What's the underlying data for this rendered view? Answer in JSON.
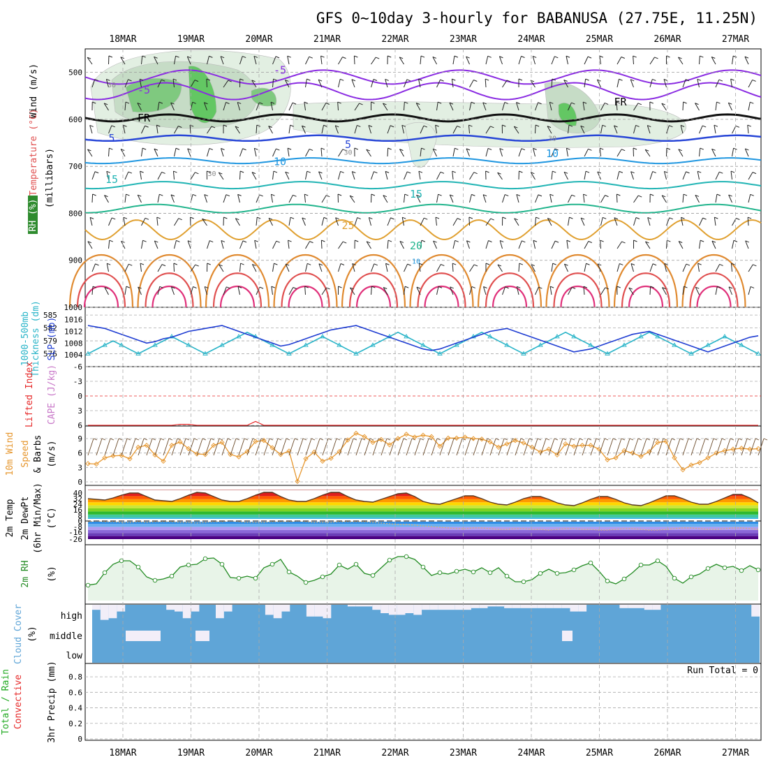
{
  "title": "GFS 0~10day 3-hourly for BABANUSA (27.75E, 11.25N)",
  "date_labels": [
    "18MAR",
    "19MAR",
    "20MAR",
    "21MAR",
    "22MAR",
    "23MAR",
    "24MAR",
    "25MAR",
    "26MAR",
    "27MAR"
  ],
  "colors": {
    "rh_green": "#2e8b2e",
    "temp_purple": "#8a2be2",
    "freeze": "#000000",
    "thickness": "#28b4c8",
    "slp": "#1e3cd2",
    "wind_speed": "#e6962d",
    "lifted_index": "#e62828",
    "cape": "#c878c8",
    "rh2m": "#228b22",
    "cloud": "#5fa5d7",
    "precip_total": "#22aa22",
    "precip_conv": "#e62828"
  },
  "chart_data": [
    {
      "panel": "upper_air",
      "type": "heatmap",
      "ylabel_parts": [
        "Wind (m/s)",
        "Temperature (°C)",
        "RH (%)",
        "(millibars)"
      ],
      "yticks": [
        "500",
        "600",
        "700",
        "800",
        "900",
        "1000"
      ],
      "ylim": [
        1000,
        450
      ],
      "contour_labels": [
        {
          "text": "-5",
          "x": "20MAR",
          "p": 495
        },
        {
          "text": "-5",
          "x": "18MAR",
          "p": 538
        },
        {
          "text": "FR",
          "x": "18MAR",
          "p": 597
        },
        {
          "text": "FR",
          "x": "25MAR",
          "p": 563
        },
        {
          "text": "5",
          "x": "17MAR",
          "p": 640
        },
        {
          "text": "5",
          "x": "21MAR",
          "p": 654
        },
        {
          "text": "10",
          "x": "20MAR",
          "p": 690
        },
        {
          "text": "10",
          "x": "24MAR",
          "p": 673
        },
        {
          "text": "15",
          "x": "17MAR",
          "p": 728
        },
        {
          "text": "15",
          "x": "22MAR",
          "p": 759
        },
        {
          "text": "25",
          "x": "21MAR",
          "p": 826
        },
        {
          "text": "20",
          "x": "22MAR",
          "p": 869
        },
        {
          "text": "30",
          "x": "17MAR",
          "p": 524
        },
        {
          "text": "30",
          "x": "21MAR",
          "p": 668
        },
        {
          "text": "30",
          "x": "19MAR",
          "p": 713
        },
        {
          "text": "30",
          "x": "24MAR",
          "p": 638
        },
        {
          "text": "10",
          "x": "22MAR",
          "p": 900
        }
      ]
    },
    {
      "panel": "thickness_slp",
      "type": "line",
      "ylabel_parts": [
        "1000-500mb",
        "Thickness (dm)",
        "SLP (mb)"
      ],
      "left_ticks": [
        "585",
        "582",
        "579",
        "576"
      ],
      "right_ticks": [
        "1016",
        "1012",
        "1008",
        "1004"
      ],
      "series": [
        {
          "name": "Thickness (dm)",
          "axis": "left",
          "values": [
            576,
            577,
            578,
            579,
            578,
            577,
            576,
            577,
            578,
            579,
            580,
            579,
            578,
            577,
            576,
            577,
            578,
            579,
            580,
            581,
            580,
            579,
            578,
            577,
            576,
            577,
            578,
            579,
            580,
            579,
            578,
            577,
            576,
            577,
            578,
            579,
            580,
            581,
            580,
            579,
            578,
            577,
            576,
            577,
            578,
            579,
            580,
            581,
            580,
            579,
            578,
            577,
            576,
            577,
            578,
            579,
            580,
            581,
            580,
            579,
            578,
            577,
            576,
            577,
            578,
            579,
            580,
            581,
            580,
            579,
            578,
            577,
            576,
            577,
            578,
            579,
            580,
            579,
            578,
            577,
            576
          ]
        },
        {
          "name": "SLP (mb)",
          "axis": "right",
          "values": [
            1014,
            1013.5,
            1013,
            1012,
            1011,
            1010,
            1009,
            1008,
            1008.5,
            1009.5,
            1010,
            1011,
            1012,
            1012.5,
            1013,
            1013.5,
            1014,
            1013,
            1012,
            1011,
            1010,
            1009,
            1008,
            1007,
            1007.5,
            1008.5,
            1009.5,
            1010.5,
            1011.5,
            1012.5,
            1013,
            1013.5,
            1014,
            1013,
            1012,
            1011,
            1010,
            1009,
            1008,
            1007,
            1006,
            1005.5,
            1006,
            1007,
            1008,
            1009,
            1010,
            1011,
            1012,
            1012.5,
            1013,
            1012,
            1011,
            1010,
            1009,
            1008,
            1007,
            1006,
            1005,
            1005.5,
            1006,
            1007,
            1008,
            1009,
            1010,
            1011,
            1011.5,
            1012,
            1011,
            1010,
            1009,
            1008,
            1007,
            1006,
            1005,
            1006,
            1007,
            1008,
            1009,
            1010,
            1010.5
          ]
        }
      ]
    },
    {
      "panel": "lifted_index_cape",
      "type": "line",
      "ylabel_parts": [
        "Lifted Index",
        "CAPE (J/kg)"
      ],
      "yticks": [
        "-6",
        "-3",
        "0",
        "3",
        "6"
      ],
      "ylim": [
        6,
        -6
      ],
      "series": [
        {
          "name": "Lifted Index",
          "values": [
            6,
            6,
            6,
            6,
            6,
            6,
            6,
            6,
            6,
            6,
            6,
            5.8,
            5.8,
            6,
            6,
            6,
            6,
            6,
            6,
            6,
            5.2,
            6,
            6,
            6,
            6,
            6,
            6,
            6,
            6,
            6,
            6,
            6,
            6,
            6,
            6,
            6,
            6,
            6,
            6,
            6,
            6,
            6,
            6,
            6,
            6,
            6,
            6,
            6,
            6,
            6,
            6,
            6,
            6,
            6,
            6,
            6,
            6,
            6,
            6,
            6,
            6,
            6,
            6,
            6,
            6,
            6,
            6,
            6,
            6,
            6,
            6,
            6,
            6,
            6,
            6,
            6,
            6,
            6,
            6,
            6,
            6
          ]
        }
      ]
    },
    {
      "panel": "wind10m",
      "type": "line",
      "ylabel_parts": [
        "10m Wind",
        "Speed",
        "& Barbs",
        "(m/s)"
      ],
      "yticks": [
        "9",
        "6",
        "3",
        "0"
      ],
      "ylim": [
        0,
        11
      ],
      "series": [
        {
          "name": "Speed",
          "values": [
            3.8,
            3.7,
            5,
            5.4,
            5.5,
            4.8,
            7.2,
            7.6,
            5.6,
            4.3,
            7.6,
            8.3,
            6.9,
            5.8,
            5.7,
            7.6,
            8.2,
            5.7,
            5.2,
            6.3,
            8.4,
            8.6,
            7.1,
            5.7,
            6.4,
            0.1,
            4.8,
            6.2,
            4.3,
            4.9,
            6.3,
            8.7,
            10.1,
            9.4,
            8.2,
            8.8,
            7.7,
            9,
            9.9,
            9.3,
            9.7,
            9.4,
            7.4,
            9.1,
            9.1,
            9.3,
            9,
            8.9,
            8.3,
            7.2,
            7.9,
            8.6,
            8.1,
            7.2,
            6.2,
            6.8,
            5.6,
            7.9,
            7.4,
            7.6,
            7.6,
            6.8,
            4.6,
            5,
            6.5,
            6,
            5.3,
            6.3,
            8.2,
            8.4,
            5,
            2.5,
            3.5,
            4,
            5,
            6,
            6.5,
            6.8,
            7,
            6.8,
            6.9
          ]
        }
      ]
    },
    {
      "panel": "temp2m",
      "type": "area",
      "ylabel_parts": [
        "2m Temp",
        "2m DewPt",
        "(6hr Min/Max)",
        "(°C)"
      ],
      "yticks": [
        "40",
        "32",
        "24",
        "16",
        "8",
        "0",
        "-8",
        "-16",
        "-26"
      ],
      "ylim": [
        -26,
        44
      ],
      "series": [
        {
          "name": "2m Temp",
          "values": [
            32,
            31,
            30,
            33,
            37,
            40,
            40,
            35,
            30,
            29,
            28,
            32,
            37,
            41,
            40,
            35,
            30,
            28,
            28,
            32,
            37,
            41,
            41,
            35,
            30,
            28,
            28,
            32,
            37,
            41,
            41,
            35,
            30,
            28,
            27,
            31,
            35,
            39,
            40,
            35,
            28,
            25,
            24,
            28,
            32,
            36,
            36,
            32,
            27,
            24,
            23,
            27,
            32,
            35,
            35,
            31,
            26,
            23,
            22,
            26,
            31,
            35,
            35,
            31,
            26,
            23,
            22,
            26,
            31,
            36,
            36,
            32,
            27,
            24,
            24,
            28,
            33,
            38,
            38,
            33,
            26
          ]
        },
        {
          "name": "2m DewPt",
          "values": [
            -1,
            0,
            -1,
            -1,
            -2,
            -2,
            -1,
            -2,
            -1,
            -1,
            -1,
            -2,
            -2,
            -3,
            -2,
            -1,
            -1,
            0,
            -1,
            -2,
            -2,
            -2,
            -1,
            -1,
            -1,
            0,
            -1,
            -2,
            -2,
            -2,
            -1,
            -1,
            -1,
            -1,
            -2,
            -3,
            -4,
            -5,
            -5,
            -6,
            -7,
            -8,
            -9,
            -10,
            -11,
            -11,
            -10,
            -10,
            -11,
            -12,
            -12,
            -11,
            -11,
            -12,
            -12,
            -13,
            -12,
            -11,
            -11,
            -12,
            -12,
            -13,
            -13,
            -12,
            -11,
            -11,
            -12,
            -13,
            -13,
            -12,
            -11,
            -10,
            -10,
            -11,
            -12,
            -12,
            -11,
            -10,
            -10,
            -11,
            -12
          ]
        }
      ]
    },
    {
      "panel": "rh2m",
      "type": "area",
      "ylabel_parts": [
        "2m RH",
        "(%)"
      ],
      "ylim": [
        0,
        100
      ],
      "series": [
        {
          "name": "2m RH",
          "values": [
            22,
            24,
            40,
            52,
            57,
            57,
            48,
            34,
            29,
            31,
            35,
            48,
            51,
            52,
            60,
            61,
            52,
            33,
            32,
            35,
            32,
            47,
            52,
            59,
            41,
            35,
            26,
            29,
            34,
            38,
            51,
            45,
            52,
            39,
            36,
            47,
            58,
            63,
            63,
            59,
            48,
            36,
            40,
            38,
            42,
            45,
            41,
            47,
            40,
            47,
            35,
            27,
            27,
            30,
            39,
            45,
            39,
            40,
            44,
            50,
            54,
            42,
            28,
            24,
            31,
            40,
            51,
            51,
            57,
            49,
            32,
            25,
            34,
            38,
            46,
            52,
            47,
            49,
            43,
            50,
            44
          ]
        }
      ]
    },
    {
      "panel": "cloud",
      "type": "heatmap",
      "ylabel_parts": [
        "Cloud Cover",
        "(%)"
      ],
      "levels": [
        "high",
        "middle",
        "low"
      ],
      "series": [
        {
          "name": "high",
          "values": [
            30,
            90,
            80,
            40,
            0,
            0,
            0,
            0,
            0,
            30,
            40,
            80,
            40,
            0,
            0,
            80,
            40,
            0,
            0,
            0,
            0,
            60,
            80,
            40,
            0,
            0,
            70,
            70,
            80,
            0,
            0,
            10,
            10,
            10,
            30,
            50,
            60,
            60,
            50,
            60,
            30,
            30,
            30,
            30,
            30,
            30,
            20,
            20,
            10,
            10,
            20,
            20,
            20,
            20,
            20,
            20,
            20,
            20,
            40,
            40,
            0,
            0,
            0,
            0,
            20,
            20,
            20,
            30,
            30,
            0,
            0,
            0,
            0,
            0,
            0,
            0,
            0,
            0,
            0,
            0,
            70
          ]
        },
        {
          "name": "middle",
          "values": [
            0,
            0,
            0,
            0,
            0,
            0,
            0,
            0,
            0,
            0,
            0,
            0,
            0,
            0,
            0,
            0,
            0,
            0,
            0,
            0,
            0,
            0,
            0,
            0,
            0,
            0,
            0,
            0,
            0,
            0,
            0,
            0,
            0,
            0,
            0,
            0,
            0,
            0,
            0,
            0,
            0,
            0,
            0,
            0,
            0,
            0,
            0,
            0,
            0,
            0,
            0,
            0,
            0,
            0,
            0,
            0,
            0,
            0,
            0,
            0,
            0,
            0,
            0,
            0,
            0,
            0,
            0,
            0,
            0,
            0,
            0,
            0,
            0,
            0,
            0,
            0,
            0,
            0,
            0,
            0,
            0
          ]
        },
        {
          "name": "low",
          "values": [
            0,
            0,
            0,
            0,
            0,
            0,
            0,
            0,
            0,
            0,
            0,
            0,
            0,
            0,
            0,
            0,
            0,
            0,
            0,
            0,
            0,
            0,
            0,
            0,
            0,
            0,
            0,
            0,
            0,
            0,
            0,
            0,
            0,
            0,
            0,
            0,
            0,
            0,
            0,
            0,
            0,
            0,
            0,
            0,
            0,
            0,
            0,
            0,
            0,
            0,
            0,
            0,
            0,
            0,
            0,
            0,
            0,
            0,
            0,
            0,
            0,
            0,
            0,
            0,
            0,
            0,
            0,
            0,
            0,
            0,
            0,
            0,
            0,
            0,
            0,
            0,
            0,
            0,
            0,
            0,
            0
          ]
        }
      ]
    },
    {
      "panel": "precip",
      "type": "bar",
      "ylabel_parts": [
        "Total / Rain",
        "Convective",
        "3hr Precip (mm)"
      ],
      "yticks": [
        "0.8",
        "0.6",
        "0.4",
        "0.2",
        "0"
      ],
      "ylim": [
        0,
        0.9
      ],
      "run_total": "Run Total = 0",
      "series": [
        {
          "name": "Total / Rain",
          "values": [
            0
          ]
        },
        {
          "name": "Convective",
          "values": [
            0
          ]
        }
      ]
    }
  ]
}
